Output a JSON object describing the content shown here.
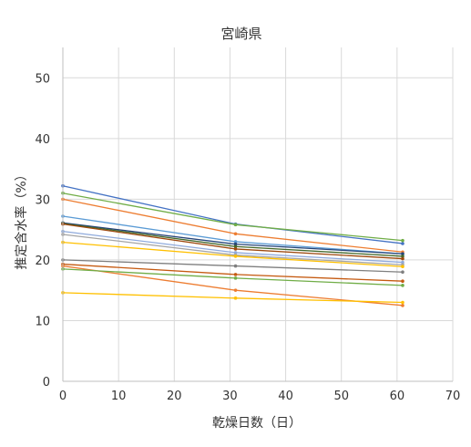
{
  "chart_data": {
    "type": "line",
    "title": "宮崎県",
    "xlabel": "乾燥日数（日）",
    "ylabel": "推定含水率（%）",
    "xlim": [
      0,
      70
    ],
    "ylim": [
      0,
      55
    ],
    "x_ticks": [
      0,
      10,
      20,
      30,
      40,
      50,
      60,
      70
    ],
    "y_ticks": [
      0,
      10,
      20,
      30,
      40,
      50
    ],
    "x_tick_labels": [
      "0",
      "10",
      "20",
      "30",
      "40",
      "50",
      "60",
      "70"
    ],
    "y_tick_labels": [
      "0",
      "10",
      "20",
      "30",
      "40",
      "50"
    ],
    "grid": true,
    "legend": "none",
    "x": [
      0,
      31,
      61
    ],
    "series": [
      {
        "color": "#4472C4",
        "values": [
          32.2,
          25.9,
          22.7
        ]
      },
      {
        "color": "#70AD47",
        "values": [
          31.0,
          25.8,
          23.2
        ]
      },
      {
        "color": "#ED7D31",
        "values": [
          30.0,
          24.3,
          21.3
        ]
      },
      {
        "color": "#5B9BD5",
        "values": [
          27.2,
          23.0,
          21.0
        ]
      },
      {
        "color": "#264478",
        "values": [
          26.1,
          22.6,
          21.0
        ]
      },
      {
        "color": "#43682B",
        "values": [
          26.0,
          22.2,
          20.6
        ]
      },
      {
        "color": "#9E480E",
        "values": [
          25.9,
          21.8,
          20.2
        ]
      },
      {
        "color": "#8FAADC",
        "values": [
          24.7,
          21.2,
          19.6
        ]
      },
      {
        "color": "#A5A5A5",
        "values": [
          24.2,
          20.8,
          19.2
        ]
      },
      {
        "color": "#FFC000",
        "values": [
          22.9,
          20.6,
          18.9
        ]
      },
      {
        "color": "#7F7F7F",
        "values": [
          20.0,
          19.0,
          18.0
        ]
      },
      {
        "color": "#C55A11",
        "values": [
          19.3,
          17.6,
          16.5
        ]
      },
      {
        "color": "#ED7D31",
        "values": [
          19.0,
          15.0,
          12.5
        ]
      },
      {
        "color": "#70AD47",
        "values": [
          18.5,
          17.0,
          15.8
        ]
      },
      {
        "color": "#FFC000",
        "values": [
          14.6,
          13.7,
          13.0
        ]
      }
    ]
  }
}
